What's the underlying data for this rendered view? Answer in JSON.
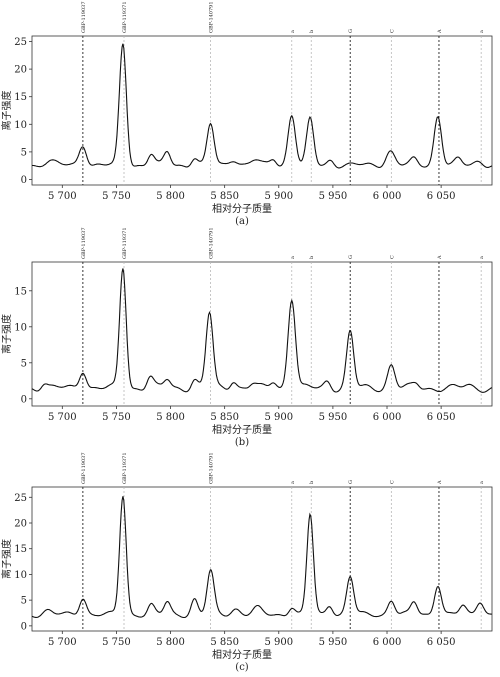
{
  "chart_data": [
    {
      "type": "line",
      "caption": "(a)",
      "xlabel": "相对分子质量",
      "ylabel": "离子强度",
      "xlim": [
        5672,
        5697.5
      ],
      "xlim_note": "",
      "ylim": [
        -1,
        26
      ],
      "x_ticks": [
        5700,
        5750,
        5800,
        5850,
        5900,
        5950,
        6000,
        6050
      ],
      "x_tick_labels": [
        "5 700",
        "5 750",
        "5 800",
        "5 850",
        "5 900",
        "5 950",
        "6 000",
        "6 050"
      ],
      "y_ticks": [
        0,
        5,
        10,
        15,
        20,
        25
      ],
      "y_tick_labels": [
        "0",
        "5",
        "10",
        "15",
        "20",
        "25"
      ],
      "markers": [
        {
          "x": 5719,
          "label": "GBP-119037",
          "style": "dark"
        },
        {
          "x": 5757,
          "label": "GBP-119371",
          "style": "light"
        },
        {
          "x": 5837,
          "label": "GBP-140791",
          "style": "light"
        },
        {
          "x": 5912,
          "label": "a",
          "style": "light"
        },
        {
          "x": 5930,
          "label": "b",
          "style": "light"
        },
        {
          "x": 5966,
          "label": "G",
          "style": "dark"
        },
        {
          "x": 6004,
          "label": "C",
          "style": "light"
        },
        {
          "x": 6048,
          "label": "A",
          "style": "dark"
        },
        {
          "x": 6087,
          "label": "a",
          "style": "light"
        }
      ],
      "baseline": 2.6,
      "peaks": [
        {
          "x": 5688,
          "h": 0.7,
          "w": 5
        },
        {
          "x": 5719,
          "h": 3.8,
          "w": 3.4
        },
        {
          "x": 5756,
          "h": 22,
          "w": 3.2
        },
        {
          "x": 5782,
          "h": 2.0,
          "w": 3
        },
        {
          "x": 5797,
          "h": 2.4,
          "w": 3
        },
        {
          "x": 5822,
          "h": 1.4,
          "w": 3
        },
        {
          "x": 5837,
          "h": 7.4,
          "w": 3.2
        },
        {
          "x": 5858,
          "h": 1.2,
          "w": 4
        },
        {
          "x": 5878,
          "h": 0.9,
          "w": 4
        },
        {
          "x": 5895,
          "h": 1.2,
          "w": 3
        },
        {
          "x": 5912,
          "h": 9.2,
          "w": 3.4
        },
        {
          "x": 5929,
          "h": 8.2,
          "w": 3.2
        },
        {
          "x": 5948,
          "h": 1.0,
          "w": 3
        },
        {
          "x": 6003,
          "h": 2.6,
          "w": 4
        },
        {
          "x": 6025,
          "h": 1.0,
          "w": 3
        },
        {
          "x": 6047,
          "h": 9.0,
          "w": 3.4
        },
        {
          "x": 6066,
          "h": 1.0,
          "w": 3
        },
        {
          "x": 6085,
          "h": 0.8,
          "w": 4
        }
      ]
    },
    {
      "type": "line",
      "caption": "(b)",
      "xlabel": "相对分子质量",
      "ylabel": "离子强度",
      "xlim": [
        5672,
        5697.5
      ],
      "ylim": [
        -1,
        19
      ],
      "x_ticks": [
        5700,
        5750,
        5800,
        5850,
        5900,
        5950,
        6000,
        6050
      ],
      "x_tick_labels": [
        "5 700",
        "5 750",
        "5 800",
        "5 850",
        "5 900",
        "5 950",
        "6 000",
        "6 050"
      ],
      "y_ticks": [
        0,
        5,
        10,
        15
      ],
      "y_tick_labels": [
        "0",
        "5",
        "10",
        "15"
      ],
      "markers": [
        {
          "x": 5719,
          "label": "GBP-119037",
          "style": "dark"
        },
        {
          "x": 5757,
          "label": "GBP-119371",
          "style": "light"
        },
        {
          "x": 5837,
          "label": "GBP-140791",
          "style": "light"
        },
        {
          "x": 5912,
          "label": "a",
          "style": "light"
        },
        {
          "x": 5930,
          "label": "b",
          "style": "light"
        },
        {
          "x": 5966,
          "label": "G",
          "style": "dark"
        },
        {
          "x": 6004,
          "label": "C",
          "style": "light"
        },
        {
          "x": 6048,
          "label": "A",
          "style": "dark"
        },
        {
          "x": 6087,
          "label": "a",
          "style": "light"
        }
      ],
      "baseline": 1.5,
      "peaks": [
        {
          "x": 5683,
          "h": 0.8,
          "w": 3
        },
        {
          "x": 5719,
          "h": 2.6,
          "w": 3.2
        },
        {
          "x": 5756,
          "h": 16.8,
          "w": 3.0
        },
        {
          "x": 5781,
          "h": 1.6,
          "w": 3
        },
        {
          "x": 5797,
          "h": 1.2,
          "w": 3
        },
        {
          "x": 5822,
          "h": 1.2,
          "w": 3
        },
        {
          "x": 5836,
          "h": 10.4,
          "w": 3.2
        },
        {
          "x": 5858,
          "h": 1.2,
          "w": 3
        },
        {
          "x": 5876,
          "h": 0.6,
          "w": 3
        },
        {
          "x": 5895,
          "h": 1.0,
          "w": 3
        },
        {
          "x": 5912,
          "h": 12.6,
          "w": 3.4
        },
        {
          "x": 5945,
          "h": 1.0,
          "w": 3
        },
        {
          "x": 5966,
          "h": 7.8,
          "w": 3.2
        },
        {
          "x": 6004,
          "h": 3.3,
          "w": 3.4
        },
        {
          "x": 6027,
          "h": 0.6,
          "w": 3
        },
        {
          "x": 6075,
          "h": 0.3,
          "w": 4
        }
      ]
    },
    {
      "type": "line",
      "caption": "(c)",
      "xlabel": "相对分子质量",
      "ylabel": "离子强度",
      "xlim": [
        5672,
        5697.5
      ],
      "ylim": [
        -1,
        27
      ],
      "x_ticks": [
        5700,
        5750,
        5800,
        5850,
        5900,
        5950,
        6000,
        6050
      ],
      "x_tick_labels": [
        "5 700",
        "5 750",
        "5 800",
        "5 850",
        "5 900",
        "5 950",
        "6 000",
        "6 050"
      ],
      "y_ticks": [
        0,
        5,
        10,
        15,
        20,
        25
      ],
      "y_tick_labels": [
        "0",
        "5",
        "10",
        "15",
        "20",
        "25"
      ],
      "markers": [
        {
          "x": 5719,
          "label": "GBP-119037",
          "style": "dark"
        },
        {
          "x": 5757,
          "label": "GBP-119371",
          "style": "light"
        },
        {
          "x": 5837,
          "label": "GBP-140791",
          "style": "light"
        },
        {
          "x": 5912,
          "label": "a",
          "style": "light"
        },
        {
          "x": 5930,
          "label": "b",
          "style": "light"
        },
        {
          "x": 5966,
          "label": "G",
          "style": "dark"
        },
        {
          "x": 6004,
          "label": "C",
          "style": "light"
        },
        {
          "x": 6048,
          "label": "A",
          "style": "dark"
        },
        {
          "x": 6087,
          "label": "a",
          "style": "light"
        }
      ],
      "baseline": 2.2,
      "peaks": [
        {
          "x": 5686,
          "h": 0.8,
          "w": 4
        },
        {
          "x": 5719,
          "h": 3.4,
          "w": 3.2
        },
        {
          "x": 5756,
          "h": 23.2,
          "w": 3.0
        },
        {
          "x": 5782,
          "h": 1.8,
          "w": 3
        },
        {
          "x": 5797,
          "h": 2.4,
          "w": 3
        },
        {
          "x": 5822,
          "h": 3.0,
          "w": 3
        },
        {
          "x": 5837,
          "h": 8.4,
          "w": 3.2
        },
        {
          "x": 5860,
          "h": 1.2,
          "w": 4
        },
        {
          "x": 5880,
          "h": 1.2,
          "w": 4
        },
        {
          "x": 5912,
          "h": 1.6,
          "w": 3
        },
        {
          "x": 5929,
          "h": 19.4,
          "w": 3.0
        },
        {
          "x": 5947,
          "h": 2.0,
          "w": 3
        },
        {
          "x": 5966,
          "h": 7.4,
          "w": 3.2
        },
        {
          "x": 6004,
          "h": 2.9,
          "w": 3.2
        },
        {
          "x": 6025,
          "h": 2.4,
          "w": 3
        },
        {
          "x": 6047,
          "h": 6.0,
          "w": 3.2
        },
        {
          "x": 6070,
          "h": 1.6,
          "w": 3
        },
        {
          "x": 6086,
          "h": 2.8,
          "w": 3.4
        }
      ]
    }
  ]
}
